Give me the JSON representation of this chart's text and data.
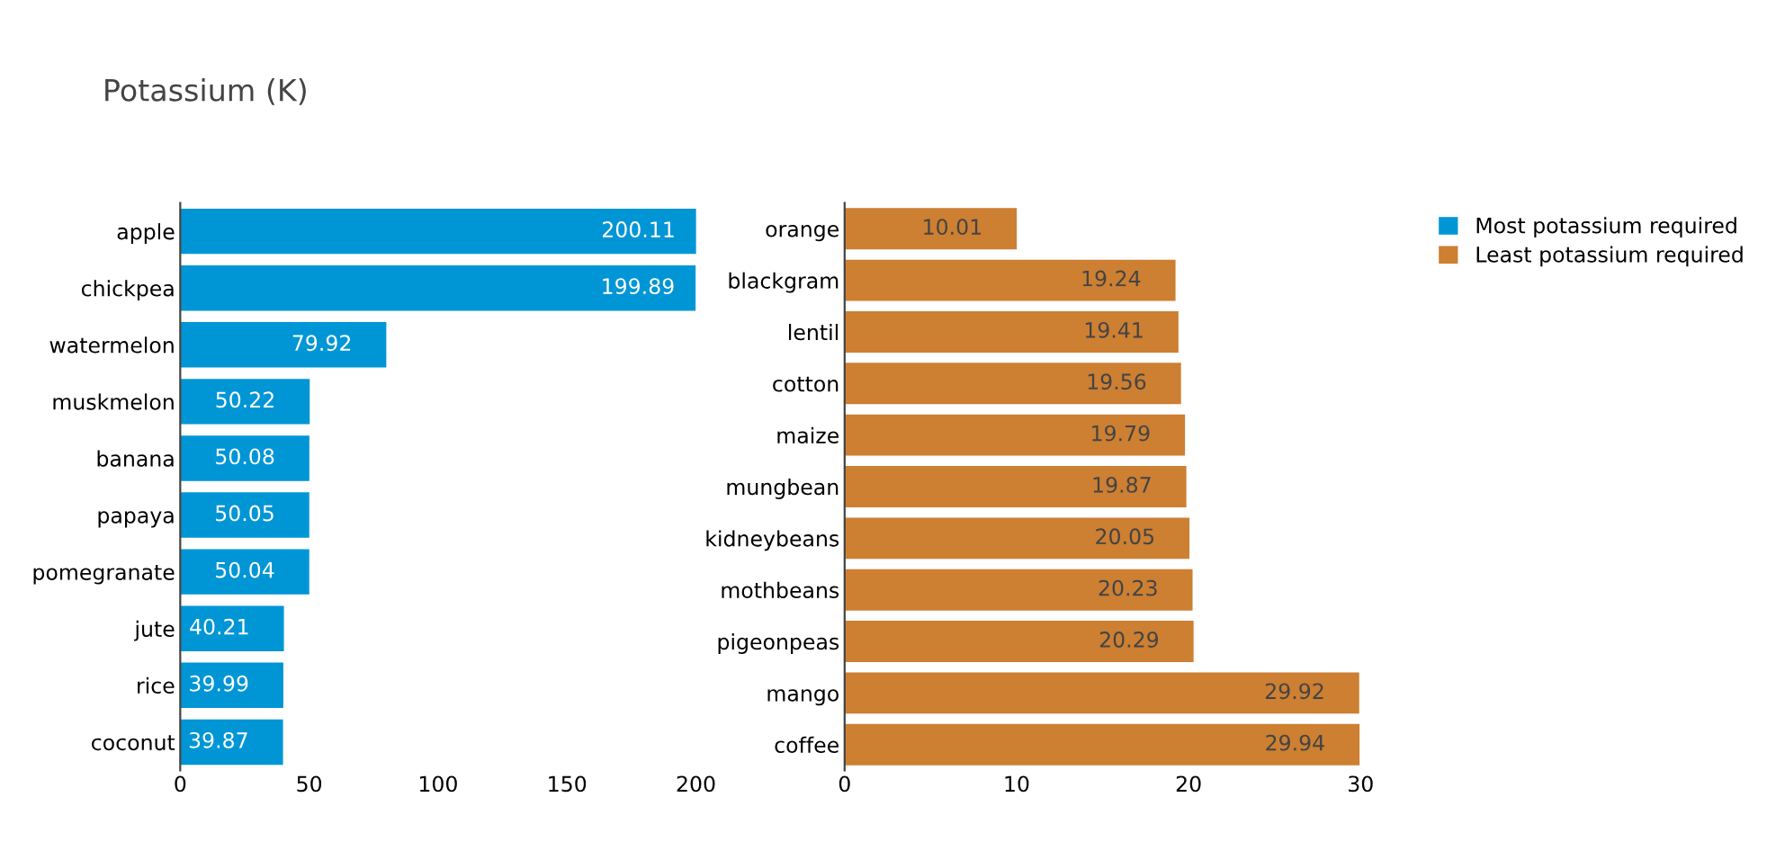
{
  "chart_data": [
    {
      "type": "bar",
      "orientation": "horizontal",
      "title": "Potassium (K)",
      "categories": [
        "apple",
        "chickpea",
        "watermelon",
        "muskmelon",
        "banana",
        "papaya",
        "pomegranate",
        "jute",
        "rice",
        "coconut"
      ],
      "series": [
        {
          "name": "Most potassium required",
          "color": "#0096d6",
          "values": [
            200.11,
            199.89,
            79.92,
            50.22,
            50.08,
            50.05,
            50.04,
            40.21,
            39.99,
            39.87
          ]
        }
      ],
      "xlim": [
        0,
        200.11
      ],
      "xticks": [
        0,
        50,
        100,
        150,
        200
      ],
      "data_labels": true,
      "legend": "top right",
      "grid": false
    },
    {
      "type": "bar",
      "orientation": "horizontal",
      "categories": [
        "orange",
        "blackgram",
        "lentil",
        "cotton",
        "maize",
        "mungbean",
        "kidneybeans",
        "mothbeans",
        "pigeonpeas",
        "mango",
        "coffee"
      ],
      "series": [
        {
          "name": "Least potassium required",
          "color": "#cd7f32",
          "values": [
            10.01,
            19.24,
            19.41,
            19.56,
            19.79,
            19.87,
            20.05,
            20.23,
            20.29,
            29.92,
            29.94
          ]
        }
      ],
      "xlim": [
        0,
        30
      ],
      "xticks": [
        0,
        10,
        20,
        30
      ],
      "data_labels": true,
      "legend": "top right",
      "grid": false
    }
  ]
}
